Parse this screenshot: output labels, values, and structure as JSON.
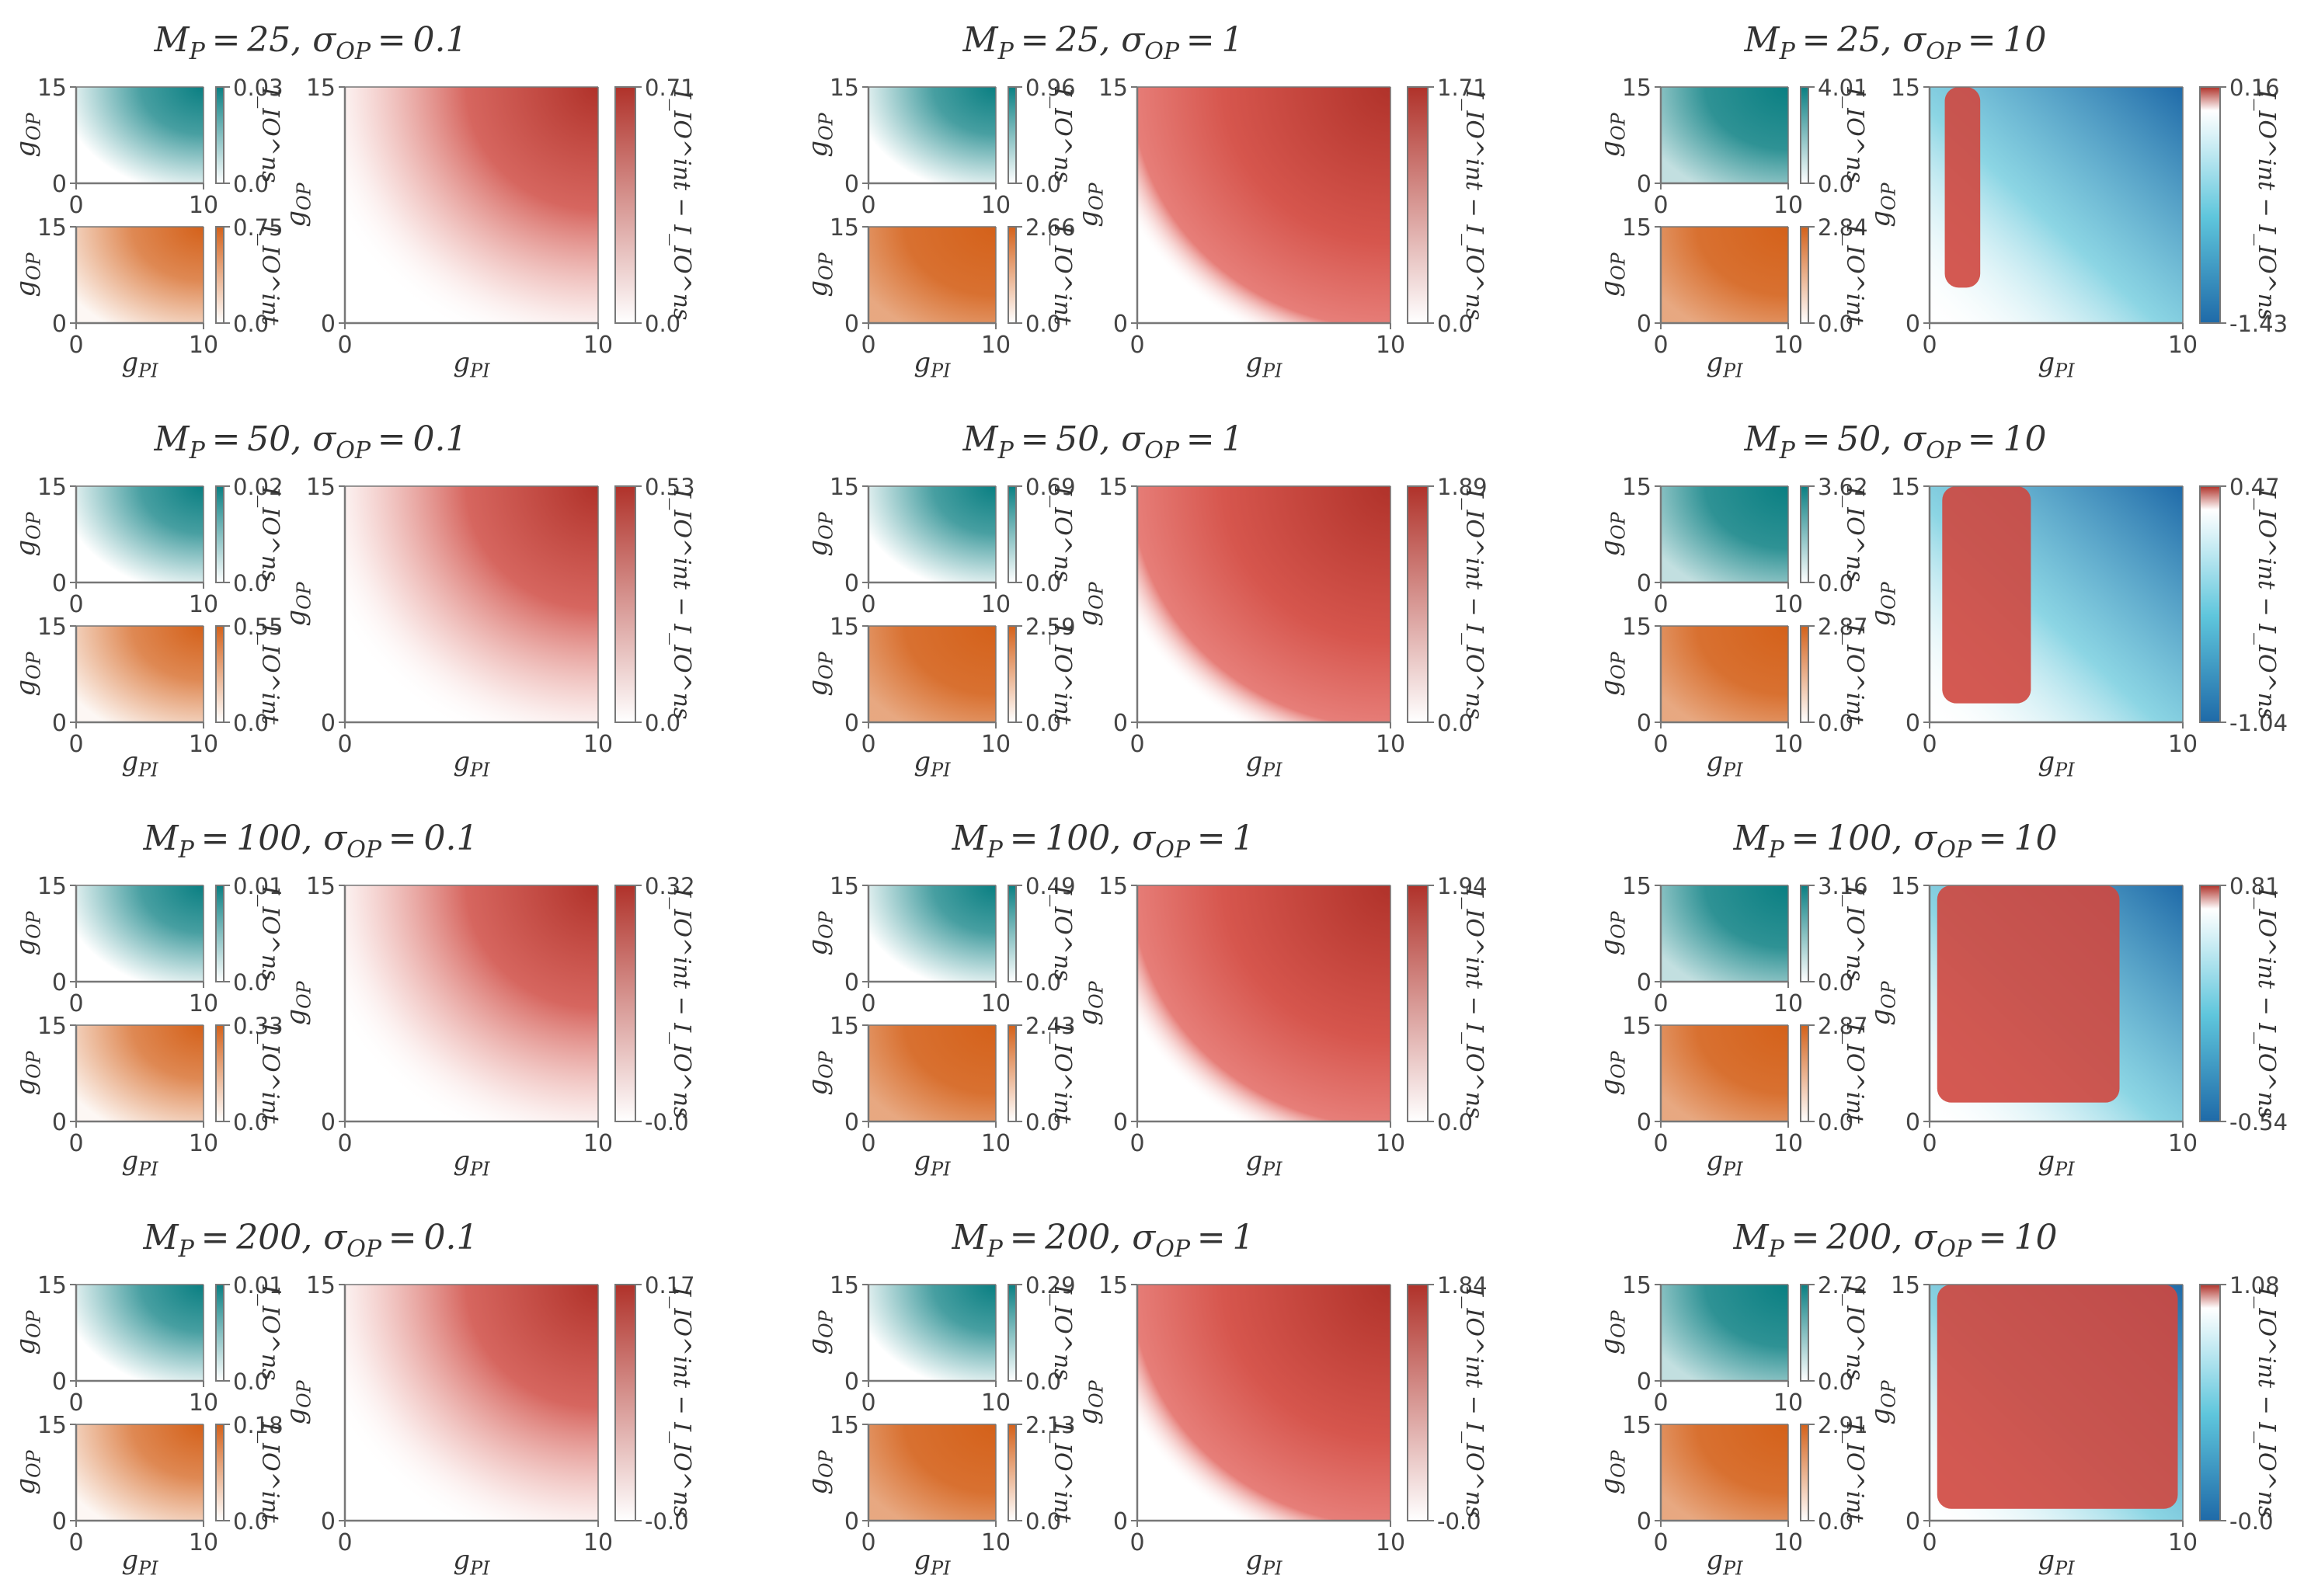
{
  "figure": {
    "x_axis": {
      "label": "g_PI",
      "range": [
        0,
        10
      ],
      "ticks": [
        "0",
        "10"
      ]
    },
    "y_axis": {
      "label": "g_OP",
      "range": [
        0,
        15
      ],
      "ticks": [
        "0",
        "15"
      ]
    },
    "inset_top_label": "I_IO^ns",
    "inset_bottom_label": "I_IO^int",
    "main_label": "I_IO^int − I_IO^ns",
    "colors": {
      "teal": "#0a7f82",
      "orange": "#d4611a",
      "red": "#b0322a",
      "blue": "#1f6aa8",
      "axis": "#777777"
    }
  },
  "chart_data": [
    {
      "type": "heatmap",
      "title_M": "25",
      "title_sigma": "0.1",
      "ns_max": "0.03",
      "ns_min": "0.0",
      "int_max": "0.75",
      "int_min": "0.0",
      "diff_max": "0.71",
      "diff_min": "0.0"
    },
    {
      "type": "heatmap",
      "title_M": "25",
      "title_sigma": "1",
      "ns_max": "0.96",
      "ns_min": "0.0",
      "int_max": "2.66",
      "int_min": "0.0",
      "diff_max": "1.71",
      "diff_min": "0.0"
    },
    {
      "type": "heatmap",
      "title_M": "25",
      "title_sigma": "10",
      "ns_max": "4.01",
      "ns_min": "0.0",
      "int_max": "2.84",
      "int_min": "0.0",
      "diff_max": "0.16",
      "diff_min": "-1.43"
    },
    {
      "type": "heatmap",
      "title_M": "50",
      "title_sigma": "0.1",
      "ns_max": "0.02",
      "ns_min": "0.0",
      "int_max": "0.55",
      "int_min": "0.0",
      "diff_max": "0.53",
      "diff_min": "0.0"
    },
    {
      "type": "heatmap",
      "title_M": "50",
      "title_sigma": "1",
      "ns_max": "0.69",
      "ns_min": "0.0",
      "int_max": "2.59",
      "int_min": "0.0",
      "diff_max": "1.89",
      "diff_min": "0.0"
    },
    {
      "type": "heatmap",
      "title_M": "50",
      "title_sigma": "10",
      "ns_max": "3.62",
      "ns_min": "0.0",
      "int_max": "2.87",
      "int_min": "0.0",
      "diff_max": "0.47",
      "diff_min": "-1.04"
    },
    {
      "type": "heatmap",
      "title_M": "100",
      "title_sigma": "0.1",
      "ns_max": "0.01",
      "ns_min": "0.0",
      "int_max": "0.33",
      "int_min": "0.0",
      "diff_max": "0.32",
      "diff_min": "-0.0"
    },
    {
      "type": "heatmap",
      "title_M": "100",
      "title_sigma": "1",
      "ns_max": "0.49",
      "ns_min": "0.0",
      "int_max": "2.43",
      "int_min": "0.0",
      "diff_max": "1.94",
      "diff_min": "0.0"
    },
    {
      "type": "heatmap",
      "title_M": "100",
      "title_sigma": "10",
      "ns_max": "3.16",
      "ns_min": "0.0",
      "int_max": "2.87",
      "int_min": "0.0",
      "diff_max": "0.81",
      "diff_min": "-0.54"
    },
    {
      "type": "heatmap",
      "title_M": "200",
      "title_sigma": "0.1",
      "ns_max": "0.01",
      "ns_min": "0.0",
      "int_max": "0.18",
      "int_min": "0.0",
      "diff_max": "0.17",
      "diff_min": "-0.0"
    },
    {
      "type": "heatmap",
      "title_M": "200",
      "title_sigma": "1",
      "ns_max": "0.29",
      "ns_min": "0.0",
      "int_max": "2.13",
      "int_min": "0.0",
      "diff_max": "1.84",
      "diff_min": "-0.0"
    },
    {
      "type": "heatmap",
      "title_M": "200",
      "title_sigma": "10",
      "ns_max": "2.72",
      "ns_min": "0.0",
      "int_max": "2.91",
      "int_min": "0.0",
      "diff_max": "1.08",
      "diff_min": "-0.0"
    }
  ]
}
